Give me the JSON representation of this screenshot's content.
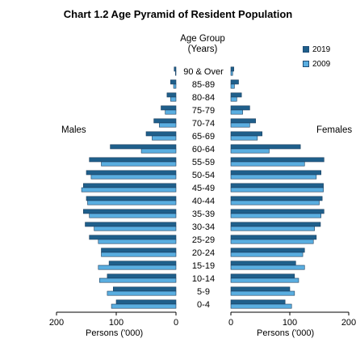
{
  "chart_title": "Chart 1.2  Age Pyramid of Resident Population",
  "age_group_heading": "Age Group",
  "age_group_unit": "(Years)",
  "left_side_label": "Males",
  "right_side_label": "Females",
  "legend": [
    {
      "label": "2019",
      "color": "#1f5f8b"
    },
    {
      "label": "2009",
      "color": "#5aaee0"
    }
  ],
  "x_axis_title": "Persons ('000)",
  "colors": {
    "series_2019": "#1f5f8b",
    "series_2009": "#5aaee0",
    "bar_edge": "#1b3f5f"
  },
  "chart_data": {
    "type": "bar",
    "orientation": "horizontal-pyramid",
    "title": "Chart 1.2  Age Pyramid of Resident Population",
    "xlabel": "Persons ('000)",
    "categories": [
      "90 & Over",
      "85-89",
      "80-84",
      "75-79",
      "70-74",
      "65-69",
      "60-64",
      "55-59",
      "50-54",
      "45-49",
      "40-44",
      "35-39",
      "30-34",
      "25-29",
      "20-24",
      "15-19",
      "10-14",
      "5-9",
      "0-4"
    ],
    "males": {
      "series": [
        {
          "name": "2019",
          "values": [
            3,
            9,
            15,
            25,
            37,
            50,
            110,
            145,
            150,
            155,
            150,
            155,
            152,
            145,
            125,
            112,
            115,
            105,
            100
          ]
        },
        {
          "name": "2009",
          "values": [
            1,
            4,
            9,
            18,
            28,
            40,
            58,
            125,
            142,
            158,
            148,
            145,
            137,
            130,
            125,
            130,
            128,
            115,
            108
          ]
        }
      ]
    },
    "females": {
      "series": [
        {
          "name": "2019",
          "values": [
            5,
            13,
            18,
            32,
            42,
            53,
            118,
            158,
            153,
            157,
            155,
            158,
            152,
            145,
            125,
            110,
            108,
            100,
            92
          ]
        },
        {
          "name": "2009",
          "values": [
            3,
            6,
            10,
            20,
            32,
            45,
            65,
            125,
            145,
            157,
            150,
            153,
            142,
            140,
            122,
            125,
            115,
            108,
            103
          ]
        }
      ]
    },
    "xlim": [
      0,
      200
    ],
    "ticks": [
      "200",
      "100",
      "0",
      "0",
      "100",
      "200"
    ],
    "grid": false,
    "legend_position": "top-right"
  }
}
